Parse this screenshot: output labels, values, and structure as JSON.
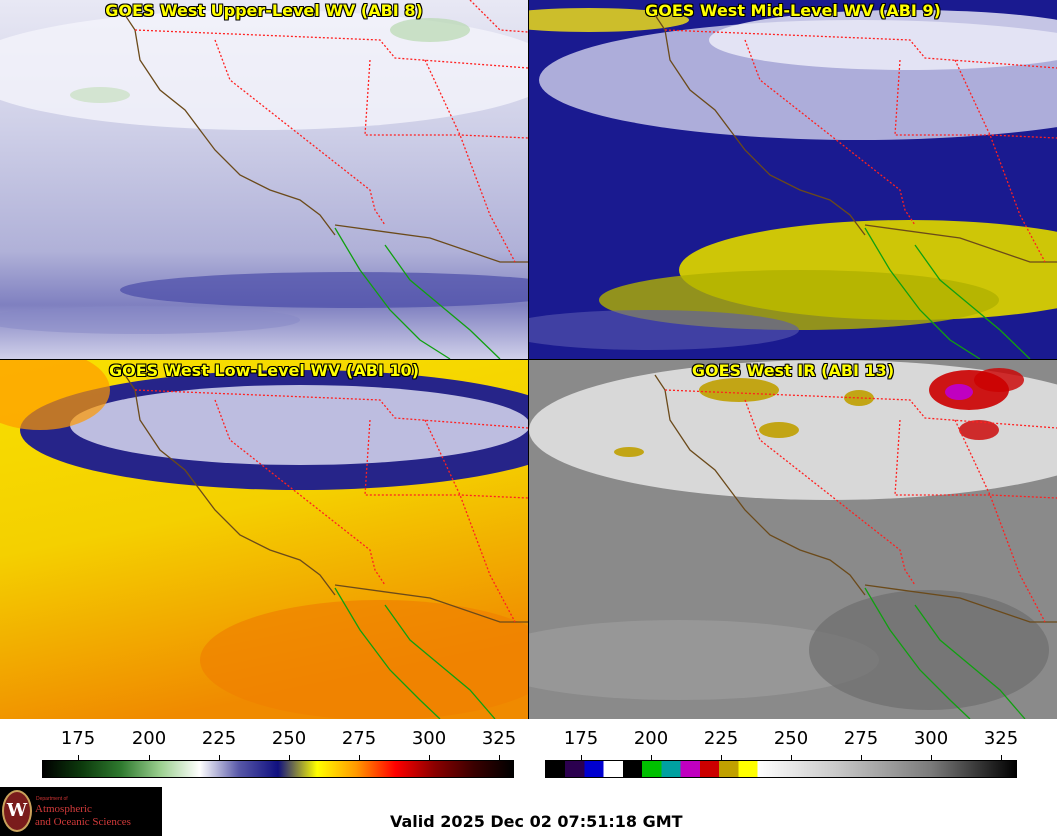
{
  "panels": [
    {
      "id": "upper",
      "title": "GOES West Upper-Level WV (ABI 8)"
    },
    {
      "id": "mid",
      "title": "GOES West Mid-Level WV (ABI 9)"
    },
    {
      "id": "low",
      "title": "GOES West Low-Level WV (ABI 10)"
    },
    {
      "id": "ir",
      "title": "GOES West IR (ABI 13)"
    }
  ],
  "wv_scale": {
    "ticks": [
      "175",
      "200",
      "225",
      "250",
      "275",
      "300",
      "325"
    ],
    "gradient": [
      "#000000",
      "#0d3b0d",
      "#2f7a2f",
      "#9bcf8f",
      "#ffffff",
      "#5858a8",
      "#101080",
      "#ffff00",
      "#ff9900",
      "#ff0000",
      "#8b0000",
      "#3a0000",
      "#000000"
    ]
  },
  "ir_scale": {
    "ticks": [
      "175",
      "200",
      "225",
      "250",
      "275",
      "300",
      "325"
    ],
    "segments": [
      "#000000",
      "#2b004f",
      "#0000d0",
      "#ffffff",
      "#000000",
      "#00c000",
      "#00a0a0",
      "#c000c0",
      "#cc0000",
      "#c0a000",
      "#ffff00"
    ]
  },
  "logo": {
    "dept": "Department of",
    "line1": "Atmospheric",
    "line2": "and Oceanic Sciences",
    "seal": "W"
  },
  "valid_time": "Valid 2025 Dec 02 07:51:18 GMT",
  "colors": {
    "coast": "#6b4a1a",
    "state_border": "#ff2020",
    "mexico_coast": "#10a010",
    "title_text": "#ffff00"
  }
}
